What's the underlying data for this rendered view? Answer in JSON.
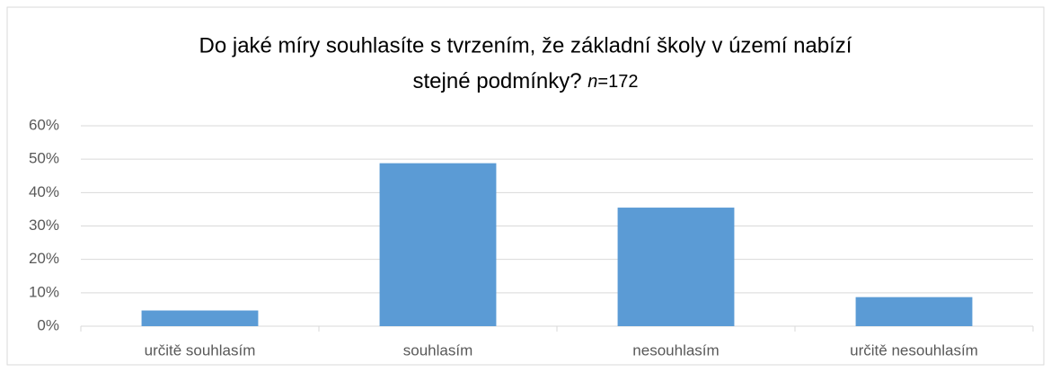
{
  "chart_data": {
    "type": "bar",
    "title": [
      "Do jaké míry souhlasíte s tvrzením, že základní školy v území nabízí",
      "stejné podmínky?"
    ],
    "annotation": [
      "n",
      "=172"
    ],
    "categories": [
      "určitě souhlasím",
      "souhlasím",
      "nesouhlasím",
      "určitě nesouhlasím"
    ],
    "values": [
      4.7,
      48.8,
      35.5,
      8.7
    ],
    "color": "#5b9bd5",
    "ylim": [
      0,
      60
    ],
    "yticks": [
      {
        "value": 0,
        "label": "0%"
      },
      {
        "value": 10,
        "label": "10%"
      },
      {
        "value": 20,
        "label": "20%"
      },
      {
        "value": 30,
        "label": "30%"
      },
      {
        "value": 40,
        "label": "40%"
      },
      {
        "value": 50,
        "label": "50%"
      },
      {
        "value": 60,
        "label": "60%"
      }
    ],
    "grid": true
  }
}
